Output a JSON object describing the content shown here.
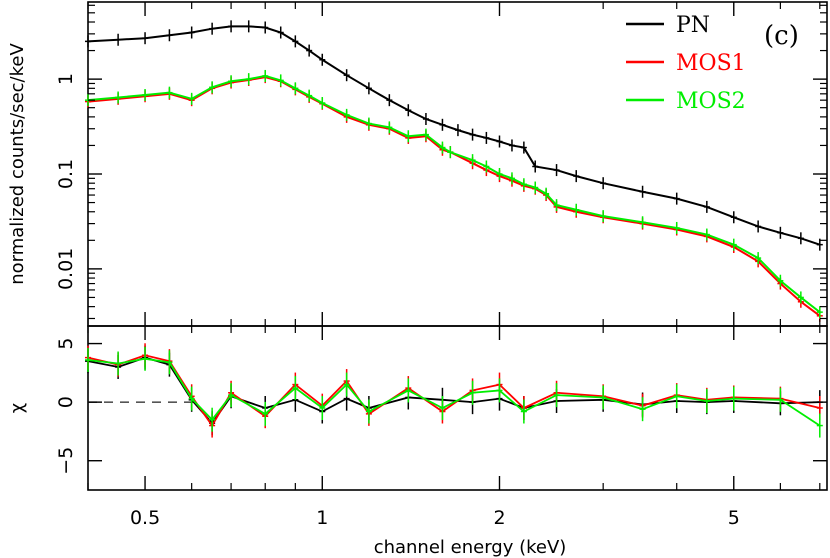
{
  "chart_data": {
    "type": "line",
    "panel_label": "(c)",
    "xlabel": "channel energy (keV)",
    "x_scale": "log",
    "xlim": [
      0.4,
      7.2
    ],
    "x_ticks": [
      {
        "value": 0.5,
        "label": "0.5"
      },
      {
        "value": 1,
        "label": "1"
      },
      {
        "value": 2,
        "label": "2"
      },
      {
        "value": 5,
        "label": "5"
      }
    ],
    "legend_position": "top-right",
    "colors": {
      "PN": "#000000",
      "MOS1": "#ff0000",
      "MOS2": "#00ee00",
      "zero_line": "#555555"
    },
    "top_panel": {
      "ylabel": "normalized counts/sec/keV",
      "y_scale": "log",
      "ylim": [
        0.0025,
        6.5
      ],
      "y_ticks": [
        {
          "value": 1,
          "label": "1"
        },
        {
          "value": 0.1,
          "label": "0.1"
        },
        {
          "value": 0.01,
          "label": "0.01"
        }
      ],
      "series": [
        {
          "name": "PN",
          "x": [
            0.4,
            0.45,
            0.5,
            0.55,
            0.6,
            0.65,
            0.7,
            0.75,
            0.8,
            0.85,
            0.9,
            0.95,
            1.0,
            1.1,
            1.2,
            1.3,
            1.4,
            1.5,
            1.6,
            1.7,
            1.8,
            1.9,
            2.0,
            2.1,
            2.2,
            2.3,
            2.5,
            2.7,
            3.0,
            3.5,
            4.0,
            4.5,
            5.0,
            5.5,
            6.0,
            6.5,
            7.0
          ],
          "y": [
            2.5,
            2.6,
            2.7,
            2.9,
            3.1,
            3.4,
            3.6,
            3.6,
            3.5,
            3.1,
            2.5,
            2.0,
            1.6,
            1.1,
            0.8,
            0.6,
            0.47,
            0.38,
            0.33,
            0.29,
            0.26,
            0.24,
            0.22,
            0.2,
            0.19,
            0.12,
            0.11,
            0.095,
            0.08,
            0.065,
            0.055,
            0.045,
            0.035,
            0.028,
            0.024,
            0.021,
            0.018
          ]
        },
        {
          "name": "MOS1",
          "x": [
            0.4,
            0.45,
            0.5,
            0.55,
            0.6,
            0.65,
            0.7,
            0.75,
            0.8,
            0.85,
            0.9,
            0.95,
            1.0,
            1.1,
            1.2,
            1.3,
            1.4,
            1.5,
            1.6,
            1.65,
            1.8,
            1.9,
            2.0,
            2.1,
            2.2,
            2.3,
            2.4,
            2.5,
            2.7,
            3.0,
            3.5,
            4.0,
            4.5,
            5.0,
            5.5,
            6.0,
            6.5,
            7.0
          ],
          "y": [
            0.58,
            0.62,
            0.66,
            0.7,
            0.6,
            0.8,
            0.92,
            0.98,
            1.05,
            0.95,
            0.78,
            0.65,
            0.55,
            0.4,
            0.33,
            0.3,
            0.24,
            0.25,
            0.18,
            0.17,
            0.13,
            0.11,
            0.095,
            0.085,
            0.075,
            0.07,
            0.06,
            0.045,
            0.04,
            0.035,
            0.03,
            0.026,
            0.022,
            0.017,
            0.012,
            0.007,
            0.0045,
            0.0032
          ]
        },
        {
          "name": "MOS2",
          "x": [
            0.4,
            0.45,
            0.5,
            0.55,
            0.6,
            0.65,
            0.7,
            0.75,
            0.8,
            0.85,
            0.9,
            0.95,
            1.0,
            1.1,
            1.2,
            1.3,
            1.4,
            1.5,
            1.6,
            1.65,
            1.8,
            1.9,
            2.0,
            2.1,
            2.2,
            2.3,
            2.4,
            2.5,
            2.7,
            3.0,
            3.5,
            4.0,
            4.5,
            5.0,
            5.5,
            6.0,
            6.5,
            7.0
          ],
          "y": [
            0.6,
            0.64,
            0.68,
            0.72,
            0.62,
            0.82,
            0.95,
            1.0,
            1.08,
            0.97,
            0.8,
            0.67,
            0.56,
            0.42,
            0.34,
            0.31,
            0.25,
            0.26,
            0.19,
            0.17,
            0.14,
            0.12,
            0.1,
            0.09,
            0.078,
            0.072,
            0.062,
            0.047,
            0.042,
            0.036,
            0.031,
            0.027,
            0.023,
            0.018,
            0.013,
            0.0075,
            0.005,
            0.0035
          ]
        }
      ]
    },
    "bottom_panel": {
      "ylabel": "χ",
      "ylim": [
        -7.5,
        6.5
      ],
      "y_ticks": [
        {
          "value": 5,
          "label": "5"
        },
        {
          "value": 0,
          "label": "0"
        },
        {
          "value": -5,
          "label": "−5"
        }
      ],
      "zero_line": 0,
      "series": [
        {
          "name": "PN",
          "x": [
            0.4,
            0.45,
            0.5,
            0.55,
            0.6,
            0.65,
            0.7,
            0.8,
            0.9,
            1.0,
            1.1,
            1.2,
            1.4,
            1.6,
            1.8,
            2.0,
            2.2,
            2.5,
            3.0,
            3.5,
            4.0,
            4.5,
            5.0,
            6.0,
            7.0
          ],
          "y": [
            3.5,
            3.0,
            3.8,
            3.2,
            0.2,
            -1.8,
            0.5,
            -0.5,
            0.2,
            -0.8,
            0.3,
            -0.5,
            0.4,
            0.2,
            0.0,
            0.3,
            -0.5,
            0.1,
            0.2,
            -0.2,
            0.1,
            0.0,
            0.1,
            -0.1,
            0.0
          ]
        },
        {
          "name": "MOS1",
          "x": [
            0.4,
            0.45,
            0.5,
            0.55,
            0.6,
            0.65,
            0.7,
            0.8,
            0.9,
            1.0,
            1.1,
            1.2,
            1.4,
            1.6,
            1.8,
            2.0,
            2.2,
            2.5,
            3.0,
            3.5,
            4.0,
            4.5,
            5.0,
            6.0,
            7.0
          ],
          "y": [
            3.8,
            3.2,
            4.0,
            3.5,
            0.5,
            -2.0,
            0.8,
            -1.2,
            1.5,
            -0.3,
            1.8,
            -1.0,
            1.2,
            -0.8,
            1.0,
            1.5,
            -0.5,
            0.8,
            0.5,
            -0.3,
            0.6,
            0.2,
            0.4,
            0.3,
            -0.5
          ]
        },
        {
          "name": "MOS2",
          "x": [
            0.4,
            0.45,
            0.5,
            0.55,
            0.6,
            0.65,
            0.7,
            0.8,
            0.9,
            1.0,
            1.1,
            1.2,
            1.4,
            1.6,
            1.8,
            2.0,
            2.2,
            2.5,
            3.0,
            3.5,
            4.0,
            4.5,
            5.0,
            6.0,
            7.0
          ],
          "y": [
            3.6,
            3.3,
            3.7,
            3.4,
            0.3,
            -1.5,
            0.6,
            -1.0,
            1.2,
            -0.5,
            1.5,
            -0.8,
            1.0,
            -0.5,
            0.8,
            1.0,
            -0.8,
            0.6,
            0.4,
            -0.6,
            0.5,
            0.1,
            0.3,
            0.2,
            -2.0
          ]
        }
      ]
    }
  }
}
